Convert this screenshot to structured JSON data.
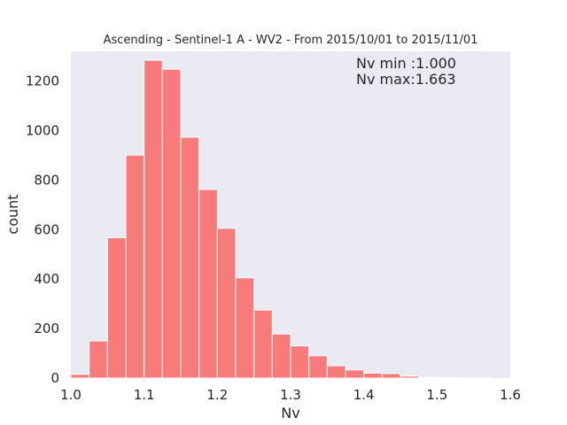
{
  "chart_data": {
    "type": "bar",
    "title": "Ascending - Sentinel-1 A - WV2 - From 2015/10/01 to 2015/11/01",
    "xlabel": "Nv",
    "ylabel": "count",
    "xlim": [
      1.0,
      1.6
    ],
    "ylim": [
      0,
      1320
    ],
    "xticks": [
      "1.0",
      "1.1",
      "1.2",
      "1.3",
      "1.4",
      "1.5",
      "1.6"
    ],
    "yticks": [
      "0",
      "200",
      "400",
      "600",
      "800",
      "1000",
      "1200"
    ],
    "grid": false,
    "colors": {
      "bar": "#f77b7b",
      "plot_bg": "#eaeaf2",
      "edge": "#ffffff"
    },
    "bins": [
      {
        "x0": 1.0,
        "x1": 1.025,
        "count": 15
      },
      {
        "x0": 1.025,
        "x1": 1.05,
        "count": 150
      },
      {
        "x0": 1.05,
        "x1": 1.075,
        "count": 567
      },
      {
        "x0": 1.075,
        "x1": 1.1,
        "count": 901
      },
      {
        "x0": 1.1,
        "x1": 1.125,
        "count": 1284
      },
      {
        "x0": 1.125,
        "x1": 1.15,
        "count": 1248
      },
      {
        "x0": 1.15,
        "x1": 1.175,
        "count": 973
      },
      {
        "x0": 1.175,
        "x1": 1.2,
        "count": 762
      },
      {
        "x0": 1.2,
        "x1": 1.225,
        "count": 605
      },
      {
        "x0": 1.225,
        "x1": 1.25,
        "count": 405
      },
      {
        "x0": 1.25,
        "x1": 1.275,
        "count": 275
      },
      {
        "x0": 1.275,
        "x1": 1.3,
        "count": 178
      },
      {
        "x0": 1.3,
        "x1": 1.325,
        "count": 130
      },
      {
        "x0": 1.325,
        "x1": 1.35,
        "count": 90
      },
      {
        "x0": 1.35,
        "x1": 1.375,
        "count": 50
      },
      {
        "x0": 1.375,
        "x1": 1.4,
        "count": 33
      },
      {
        "x0": 1.4,
        "x1": 1.425,
        "count": 20
      },
      {
        "x0": 1.425,
        "x1": 1.45,
        "count": 18
      },
      {
        "x0": 1.45,
        "x1": 1.475,
        "count": 8
      },
      {
        "x0": 1.475,
        "x1": 1.5,
        "count": 3
      },
      {
        "x0": 1.5,
        "x1": 1.525,
        "count": 2
      },
      {
        "x0": 1.525,
        "x1": 1.55,
        "count": 1
      },
      {
        "x0": 1.55,
        "x1": 1.575,
        "count": 1
      }
    ],
    "annotations": [
      "Nv min :1.000",
      "Nv max:1.663"
    ]
  }
}
